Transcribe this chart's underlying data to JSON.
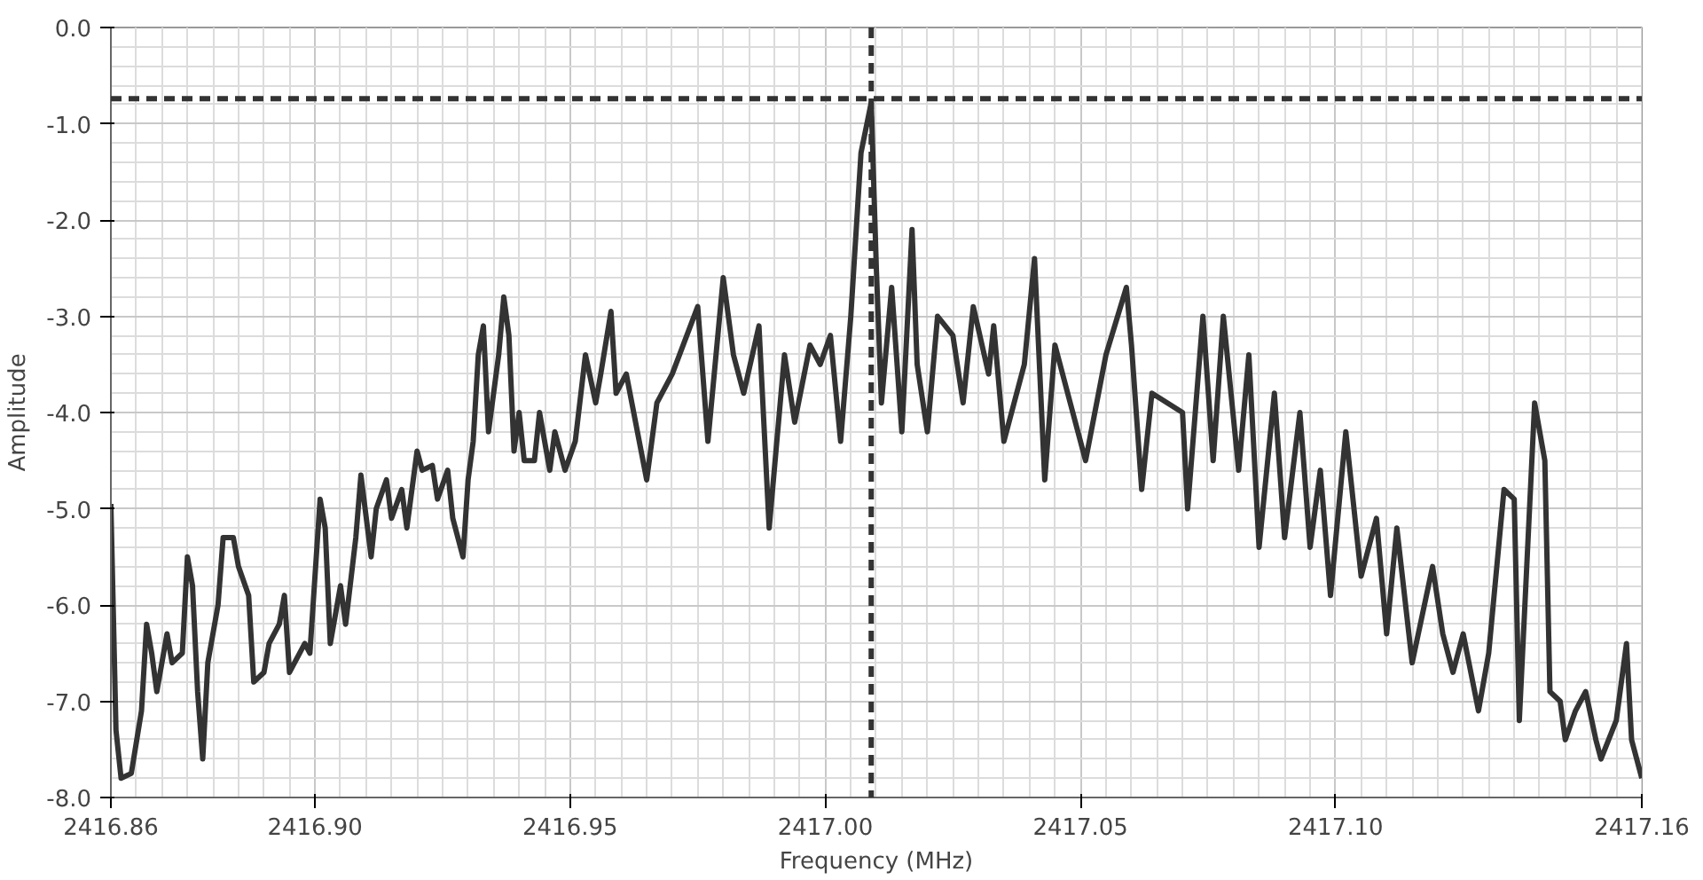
{
  "chart_data": {
    "type": "line",
    "xlabel": "Frequency (MHz)",
    "ylabel": "Amplitude",
    "xlim": [
      2416.86,
      2417.16
    ],
    "ylim": [
      -8.0,
      0.0
    ],
    "xticks": [
      {
        "value": 2416.86,
        "label": "2416.86"
      },
      {
        "value": 2416.9,
        "label": "2416.90"
      },
      {
        "value": 2416.95,
        "label": "2416.95"
      },
      {
        "value": 2417.0,
        "label": "2417.00"
      },
      {
        "value": 2417.05,
        "label": "2417.05"
      },
      {
        "value": 2417.1,
        "label": "2417.10"
      },
      {
        "value": 2417.16,
        "label": "2417.16"
      }
    ],
    "yticks": [
      {
        "value": 0,
        "label": "0.0"
      },
      {
        "value": -1,
        "label": "-1.0"
      },
      {
        "value": -2,
        "label": "-2.0"
      },
      {
        "value": -3,
        "label": "-3.0"
      },
      {
        "value": -4,
        "label": "-4.0"
      },
      {
        "value": -5,
        "label": "-5.0"
      },
      {
        "value": -6,
        "label": "-6.0"
      },
      {
        "value": -7,
        "label": "-7.0"
      },
      {
        "value": -8,
        "label": "-8.0"
      }
    ],
    "grid": true,
    "marker": "none",
    "line_style": "solid",
    "series": [
      {
        "color": "#333333",
        "x": [
          2416.86,
          2416.861,
          2416.862,
          2416.864,
          2416.866,
          2416.867,
          2416.868,
          2416.869,
          2416.871,
          2416.872,
          2416.874,
          2416.875,
          2416.876,
          2416.877,
          2416.878,
          2416.879,
          2416.881,
          2416.882,
          2416.884,
          2416.885,
          2416.887,
          2416.888,
          2416.89,
          2416.891,
          2416.893,
          2416.894,
          2416.895,
          2416.898,
          2416.899,
          2416.901,
          2416.902,
          2416.903,
          2416.905,
          2416.906,
          2416.908,
          2416.909,
          2416.911,
          2416.912,
          2416.914,
          2416.915,
          2416.917,
          2416.918,
          2416.92,
          2416.921,
          2416.923,
          2416.924,
          2416.926,
          2416.927,
          2416.929,
          2416.93,
          2416.931,
          2416.932,
          2416.933,
          2416.934,
          2416.936,
          2416.937,
          2416.938,
          2416.939,
          2416.94,
          2416.941,
          2416.943,
          2416.944,
          2416.946,
          2416.947,
          2416.949,
          2416.951,
          2416.953,
          2416.955,
          2416.956,
          2416.958,
          2416.959,
          2416.961,
          2416.965,
          2416.967,
          2416.97,
          2416.975,
          2416.977,
          2416.98,
          2416.982,
          2416.984,
          2416.987,
          2416.989,
          2416.992,
          2416.994,
          2416.997,
          2416.999,
          2417.001,
          2417.003,
          2417.005,
          2417.007,
          2417.009,
          2417.01,
          2417.011,
          2417.013,
          2417.015,
          2417.017,
          2417.018,
          2417.02,
          2417.022,
          2417.025,
          2417.027,
          2417.029,
          2417.032,
          2417.033,
          2417.035,
          2417.039,
          2417.041,
          2417.043,
          2417.045,
          2417.048,
          2417.051,
          2417.055,
          2417.059,
          2417.06,
          2417.062,
          2417.064,
          2417.07,
          2417.071,
          2417.074,
          2417.076,
          2417.078,
          2417.081,
          2417.083,
          2417.085,
          2417.088,
          2417.09,
          2417.093,
          2417.095,
          2417.097,
          2417.099,
          2417.102,
          2417.105,
          2417.108,
          2417.11,
          2417.112,
          2417.115,
          2417.119,
          2417.121,
          2417.123,
          2417.125,
          2417.128,
          2417.13,
          2417.133,
          2417.135,
          2417.136,
          2417.139,
          2417.141,
          2417.142,
          2417.144,
          2417.145,
          2417.147,
          2417.149,
          2417.151,
          2417.152,
          2417.155,
          2417.157,
          2417.158,
          2417.16
        ],
        "values": [
          -4.95,
          -7.3,
          -7.8,
          -7.75,
          -7.1,
          -6.2,
          -6.5,
          -6.9,
          -6.3,
          -6.6,
          -6.5,
          -5.5,
          -5.8,
          -6.9,
          -7.6,
          -6.6,
          -6.0,
          -5.3,
          -5.3,
          -5.6,
          -5.9,
          -6.8,
          -6.7,
          -6.4,
          -6.2,
          -5.9,
          -6.7,
          -6.4,
          -6.5,
          -4.9,
          -5.2,
          -6.4,
          -5.8,
          -6.2,
          -5.3,
          -4.65,
          -5.5,
          -5.0,
          -4.7,
          -5.1,
          -4.8,
          -5.2,
          -4.4,
          -4.6,
          -4.55,
          -4.9,
          -4.6,
          -5.1,
          -5.5,
          -4.7,
          -4.3,
          -3.4,
          -3.1,
          -4.2,
          -3.4,
          -2.8,
          -3.2,
          -4.4,
          -4.0,
          -4.5,
          -4.5,
          -4.0,
          -4.6,
          -4.2,
          -4.6,
          -4.3,
          -3.4,
          -3.9,
          -3.6,
          -2.95,
          -3.8,
          -3.6,
          -4.7,
          -3.9,
          -3.6,
          -2.9,
          -4.3,
          -2.6,
          -3.4,
          -3.8,
          -3.1,
          -5.2,
          -3.4,
          -4.1,
          -3.3,
          -3.5,
          -3.2,
          -4.3,
          -3.0,
          -1.3,
          -0.78,
          -2.5,
          -3.9,
          -2.7,
          -4.2,
          -2.1,
          -3.5,
          -4.2,
          -3.0,
          -3.2,
          -3.9,
          -2.9,
          -3.6,
          -3.1,
          -4.3,
          -3.5,
          -2.4,
          -4.7,
          -3.3,
          -3.9,
          -4.5,
          -3.4,
          -2.7,
          -3.3,
          -4.8,
          -3.8,
          -4.0,
          -5.0,
          -3.0,
          -4.5,
          -3.0,
          -4.6,
          -3.4,
          -5.4,
          -3.8,
          -5.3,
          -4.0,
          -5.4,
          -4.6,
          -5.9,
          -4.2,
          -5.7,
          -5.1,
          -6.3,
          -5.2,
          -6.6,
          -5.6,
          -6.3,
          -6.7,
          -6.3,
          -7.1,
          -6.5,
          -4.8,
          -4.9,
          -7.2,
          -3.9,
          -4.5,
          -6.9,
          -7.0,
          -7.4,
          -7.1,
          -6.9,
          -7.4,
          -7.6,
          -7.2,
          -6.4,
          -7.4,
          -7.8
        ]
      }
    ],
    "ref_lines": [
      {
        "axis": "x",
        "value": 2417.009,
        "color": "#333333",
        "line_style": "dashed"
      },
      {
        "axis": "y",
        "value": -0.74,
        "color": "#333333",
        "line_style": "dashed"
      }
    ]
  }
}
